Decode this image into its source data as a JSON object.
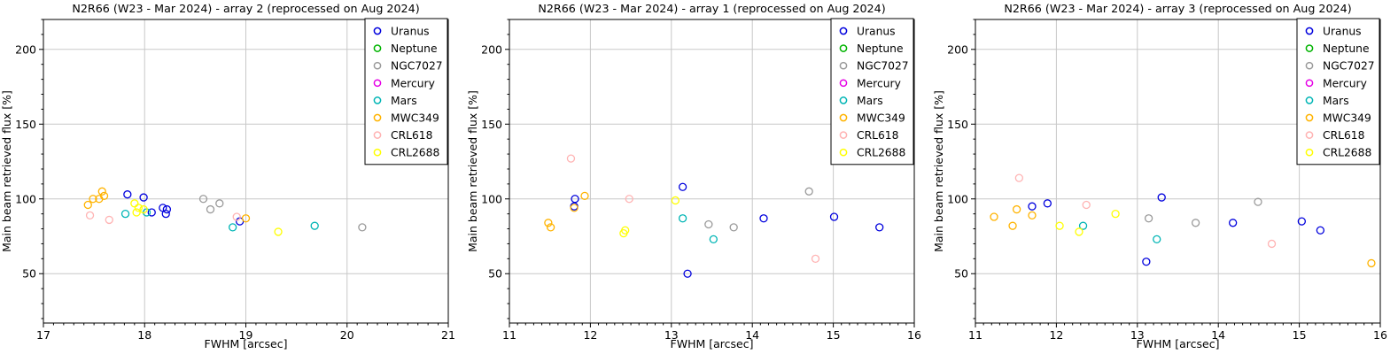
{
  "figure": {
    "background": "#ffffff",
    "grid_color": "#c8c8c8",
    "axis_color": "#000000",
    "marker": "open-circle"
  },
  "series_colors": {
    "Uranus": "#0000dd",
    "Neptune": "#00b400",
    "NGC7027": "#9a9a9a",
    "Mercury": "#e500e5",
    "Mars": "#00b5b5",
    "MWC349": "#ffb300",
    "CRL618": "#ffb3b3",
    "CRL2688": "#ffff00"
  },
  "chart_data": [
    {
      "type": "scatter",
      "title": "N2R66 (W23 - Mar 2024) - array 2 (reprocessed on Aug 2024)",
      "xlabel": "FWHM [arcsec]",
      "ylabel": "Main beam retrieved flux [%]",
      "xlim": [
        17,
        21
      ],
      "ylim": [
        17,
        220
      ],
      "xticks": [
        17,
        18,
        19,
        20,
        21
      ],
      "yticks": [
        50,
        100,
        150,
        200
      ],
      "x_minor_step": 0.1,
      "y_minor_step": 10,
      "grid": true,
      "legend_position": "upper right",
      "legend": [
        "Uranus",
        "Neptune",
        "NGC7027",
        "Mercury",
        "Mars",
        "MWC349",
        "CRL618",
        "CRL2688"
      ],
      "series": [
        {
          "name": "Uranus",
          "color": "#0000dd",
          "points": [
            [
              17.83,
              103
            ],
            [
              17.99,
              101
            ],
            [
              18.07,
              91
            ],
            [
              18.18,
              94
            ],
            [
              18.22,
              93
            ],
            [
              18.21,
              90
            ],
            [
              18.94,
              85
            ]
          ]
        },
        {
          "name": "Neptune",
          "color": "#00b400",
          "points": []
        },
        {
          "name": "NGC7027",
          "color": "#9a9a9a",
          "points": [
            [
              18.58,
              100
            ],
            [
              18.65,
              93
            ],
            [
              18.74,
              97
            ],
            [
              20.15,
              81
            ]
          ]
        },
        {
          "name": "Mercury",
          "color": "#e500e5",
          "points": []
        },
        {
          "name": "Mars",
          "color": "#00b5b5",
          "points": [
            [
              17.81,
              90
            ],
            [
              18.02,
              91
            ],
            [
              18.87,
              81
            ],
            [
              19.68,
              82
            ]
          ]
        },
        {
          "name": "MWC349",
          "color": "#ffb300",
          "points": [
            [
              17.44,
              96
            ],
            [
              17.49,
              100
            ],
            [
              17.55,
              100
            ],
            [
              17.58,
              105
            ],
            [
              17.6,
              102
            ],
            [
              19.0,
              87
            ]
          ]
        },
        {
          "name": "CRL618",
          "color": "#ffb3b3",
          "points": [
            [
              17.46,
              89
            ],
            [
              17.65,
              86
            ],
            [
              18.91,
              88
            ]
          ]
        },
        {
          "name": "CRL2688",
          "color": "#ffff00",
          "points": [
            [
              17.9,
              97
            ],
            [
              17.92,
              91
            ],
            [
              17.94,
              94
            ],
            [
              17.99,
              93
            ],
            [
              19.32,
              78
            ]
          ]
        }
      ]
    },
    {
      "type": "scatter",
      "title": "N2R66 (W23 - Mar 2024) - array 1 (reprocessed on Aug 2024)",
      "xlabel": "FWHM [arcsec]",
      "ylabel": "Main beam retrieved flux [%]",
      "xlim": [
        11,
        16
      ],
      "ylim": [
        17,
        220
      ],
      "xticks": [
        11,
        12,
        13,
        14,
        15,
        16
      ],
      "yticks": [
        50,
        100,
        150,
        200
      ],
      "x_minor_step": 0.1,
      "y_minor_step": 10,
      "grid": true,
      "legend_position": "upper right",
      "legend": [
        "Uranus",
        "Neptune",
        "NGC7027",
        "Mercury",
        "Mars",
        "MWC349",
        "CRL618",
        "CRL2688"
      ],
      "series": [
        {
          "name": "Uranus",
          "color": "#0000dd",
          "points": [
            [
              11.81,
              100
            ],
            [
              11.8,
              95
            ],
            [
              13.14,
              108
            ],
            [
              13.2,
              50
            ],
            [
              14.14,
              87
            ],
            [
              15.01,
              88
            ],
            [
              15.57,
              81
            ]
          ]
        },
        {
          "name": "Neptune",
          "color": "#00b400",
          "points": []
        },
        {
          "name": "NGC7027",
          "color": "#9a9a9a",
          "points": [
            [
              13.46,
              83
            ],
            [
              13.77,
              81
            ],
            [
              14.7,
              105
            ]
          ]
        },
        {
          "name": "Mercury",
          "color": "#e500e5",
          "points": []
        },
        {
          "name": "Mars",
          "color": "#00b5b5",
          "points": [
            [
              13.14,
              87
            ],
            [
              13.52,
              73
            ]
          ]
        },
        {
          "name": "MWC349",
          "color": "#ffb300",
          "points": [
            [
              11.48,
              84
            ],
            [
              11.51,
              81
            ],
            [
              11.8,
              94
            ],
            [
              11.93,
              102
            ]
          ]
        },
        {
          "name": "CRL618",
          "color": "#ffb3b3",
          "points": [
            [
              11.76,
              127
            ],
            [
              12.48,
              100
            ],
            [
              14.78,
              60
            ]
          ]
        },
        {
          "name": "CRL2688",
          "color": "#ffff00",
          "points": [
            [
              12.41,
              77
            ],
            [
              12.43,
              79
            ],
            [
              13.05,
              99
            ]
          ]
        }
      ]
    },
    {
      "type": "scatter",
      "title": "N2R66 (W23 - Mar 2024) - array 3 (reprocessed on Aug 2024)",
      "xlabel": "FWHM [arcsec]",
      "ylabel": "Main beam retrieved flux [%]",
      "xlim": [
        11,
        16
      ],
      "ylim": [
        17,
        220
      ],
      "xticks": [
        11,
        12,
        13,
        14,
        15,
        16
      ],
      "yticks": [
        50,
        100,
        150,
        200
      ],
      "x_minor_step": 0.1,
      "y_minor_step": 10,
      "grid": true,
      "legend_position": "upper right",
      "legend": [
        "Uranus",
        "Neptune",
        "NGC7027",
        "Mercury",
        "Mars",
        "MWC349",
        "CRL618",
        "CRL2688"
      ],
      "series": [
        {
          "name": "Uranus",
          "color": "#0000dd",
          "points": [
            [
              11.7,
              95
            ],
            [
              11.89,
              97
            ],
            [
              13.11,
              58
            ],
            [
              13.3,
              101
            ],
            [
              14.18,
              84
            ],
            [
              15.03,
              85
            ],
            [
              15.26,
              79
            ]
          ]
        },
        {
          "name": "Neptune",
          "color": "#00b400",
          "points": []
        },
        {
          "name": "NGC7027",
          "color": "#9a9a9a",
          "points": [
            [
              13.14,
              87
            ],
            [
              13.72,
              84
            ],
            [
              14.49,
              98
            ]
          ]
        },
        {
          "name": "Mercury",
          "color": "#e500e5",
          "points": []
        },
        {
          "name": "Mars",
          "color": "#00b5b5",
          "points": [
            [
              12.33,
              82
            ],
            [
              13.24,
              73
            ]
          ]
        },
        {
          "name": "MWC349",
          "color": "#ffb300",
          "points": [
            [
              11.23,
              88
            ],
            [
              11.46,
              82
            ],
            [
              11.51,
              93
            ],
            [
              11.7,
              89
            ],
            [
              15.89,
              57
            ]
          ]
        },
        {
          "name": "CRL618",
          "color": "#ffb3b3",
          "points": [
            [
              11.54,
              114
            ],
            [
              12.37,
              96
            ],
            [
              14.66,
              70
            ]
          ]
        },
        {
          "name": "CRL2688",
          "color": "#ffff00",
          "points": [
            [
              12.04,
              82
            ],
            [
              12.28,
              78
            ],
            [
              12.73,
              90
            ]
          ]
        }
      ]
    }
  ]
}
